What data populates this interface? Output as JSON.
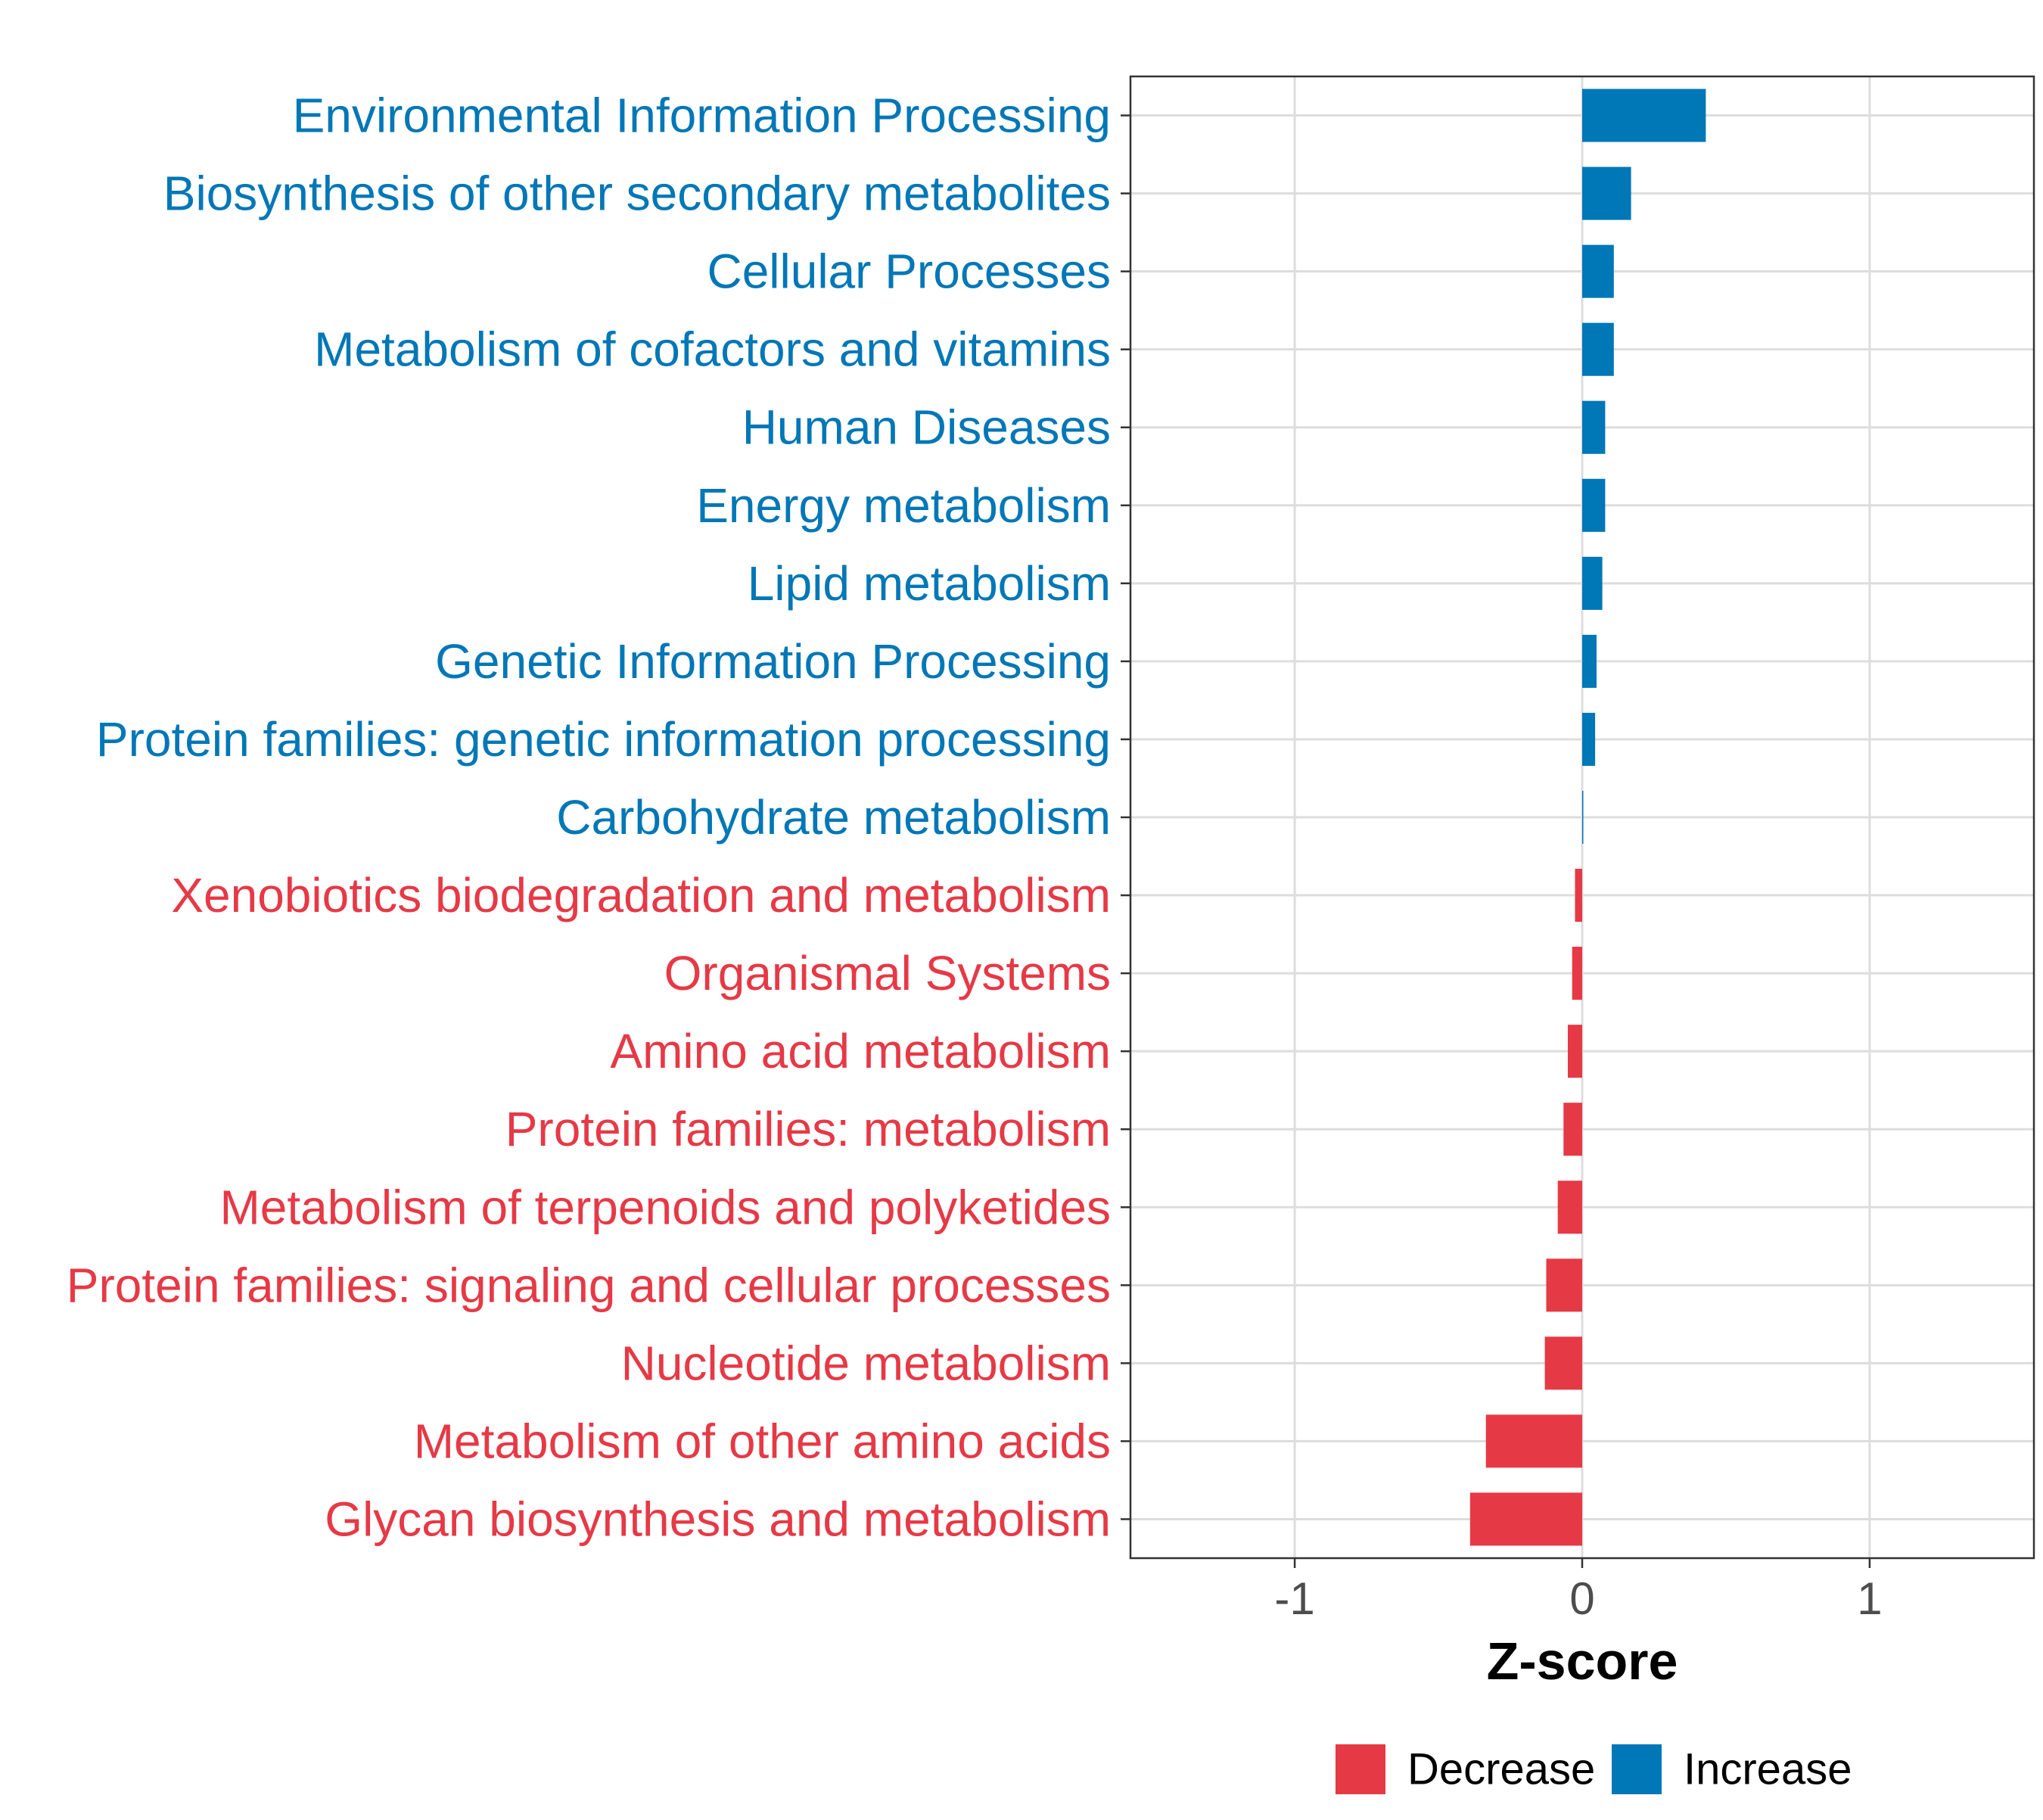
{
  "chart_data": {
    "type": "bar",
    "orientation": "horizontal",
    "xlabel": "Z-score",
    "ylabel": "",
    "xlim": [
      -1.5714,
      1.5714
    ],
    "x_ticks": [
      -1,
      0,
      1
    ],
    "x_tick_labels": [
      "-1",
      "0",
      "1"
    ],
    "grid": true,
    "categories": [
      "Environmental Information Processing",
      "Biosynthesis of other secondary metabolites",
      "Cellular Processes",
      "Metabolism of cofactors and vitamins",
      "Human Diseases",
      "Energy metabolism",
      "Lipid metabolism",
      "Genetic Information Processing",
      "Protein families: genetic information processing",
      "Carbohydrate metabolism",
      "Xenobiotics biodegradation and metabolism",
      "Organismal Systems",
      "Amino acid metabolism",
      "Protein families: metabolism",
      "Metabolism of terpenoids and polyketides",
      "Protein families: signaling and cellular processes",
      "Nucleotide metabolism",
      "Metabolism of other amino acids",
      "Glycan biosynthesis and metabolism"
    ],
    "values": [
      0.43,
      0.17,
      0.11,
      0.11,
      0.08,
      0.08,
      0.07,
      0.05,
      0.045,
      0.003,
      -0.025,
      -0.035,
      -0.05,
      -0.065,
      -0.085,
      -0.125,
      -0.13,
      -0.335,
      -0.39
    ],
    "groups": [
      "Increase",
      "Increase",
      "Increase",
      "Increase",
      "Increase",
      "Increase",
      "Increase",
      "Increase",
      "Increase",
      "Increase",
      "Decrease",
      "Decrease",
      "Decrease",
      "Decrease",
      "Decrease",
      "Decrease",
      "Decrease",
      "Decrease",
      "Decrease"
    ],
    "legend": [
      {
        "label": "Decrease",
        "color": "#E63946"
      },
      {
        "label": "Increase",
        "color": "#0077B6"
      }
    ],
    "legend_position": "bottom",
    "colors": {
      "Decrease": "#E63946",
      "Increase": "#0077B6"
    }
  }
}
